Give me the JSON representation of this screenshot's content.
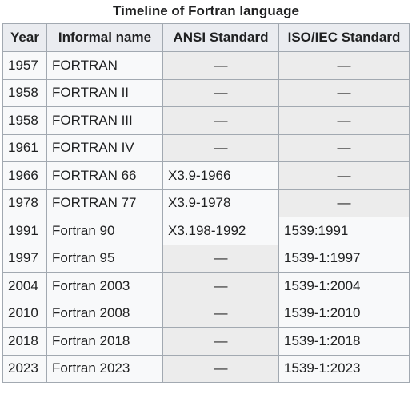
{
  "caption": "Timeline of Fortran language",
  "headers": [
    "Year",
    "Informal name",
    "ANSI Standard",
    "ISO/IEC Standard"
  ],
  "rows": [
    {
      "year": "1957",
      "name": "FORTRAN",
      "ansi": "—",
      "iso": "—"
    },
    {
      "year": "1958",
      "name": "FORTRAN II",
      "ansi": "—",
      "iso": "—"
    },
    {
      "year": "1958",
      "name": "FORTRAN III",
      "ansi": "—",
      "iso": "—"
    },
    {
      "year": "1961",
      "name": "FORTRAN IV",
      "ansi": "—",
      "iso": "—"
    },
    {
      "year": "1966",
      "name": "FORTRAN 66",
      "ansi": "X3.9-1966",
      "iso": "—"
    },
    {
      "year": "1978",
      "name": "FORTRAN 77",
      "ansi": "X3.9-1978",
      "iso": "—"
    },
    {
      "year": "1991",
      "name": "Fortran 90",
      "ansi": "X3.198-1992",
      "iso": "1539:1991"
    },
    {
      "year": "1997",
      "name": "Fortran 95",
      "ansi": "—",
      "iso": "1539-1:1997"
    },
    {
      "year": "2004",
      "name": "Fortran 2003",
      "ansi": "—",
      "iso": "1539-1:2004"
    },
    {
      "year": "2010",
      "name": "Fortran 2008",
      "ansi": "—",
      "iso": "1539-1:2010"
    },
    {
      "year": "2018",
      "name": "Fortran 2018",
      "ansi": "—",
      "iso": "1539-1:2018"
    },
    {
      "year": "2023",
      "name": "Fortran 2023",
      "ansi": "—",
      "iso": "1539-1:2023"
    }
  ],
  "colors": {
    "header_bg": "#eaecf0",
    "cell_bg": "#f8f9fa",
    "na_bg": "#ececec",
    "border": "#a2a9b1"
  }
}
